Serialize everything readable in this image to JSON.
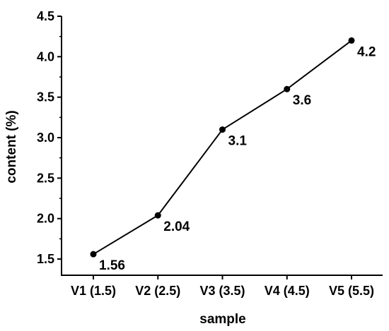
{
  "chart_data": {
    "type": "line",
    "xlabel": "sample",
    "ylabel": "content (%)",
    "categories": [
      "V1 (1.5)",
      "V2 (2.5)",
      "V3 (3.5)",
      "V4 (4.5)",
      "V5 (5.5)"
    ],
    "values": [
      1.56,
      2.04,
      3.1,
      3.6,
      4.2
    ],
    "data_labels": [
      "1.56",
      "2.04",
      "3.1",
      "3.6",
      "4.2"
    ],
    "ylim": [
      1.3,
      4.5
    ],
    "yticks": [
      1.5,
      2.0,
      2.5,
      3.0,
      3.5,
      4.0,
      4.5
    ],
    "ytick_labels": [
      "1.5",
      "2.0",
      "2.5",
      "3.0",
      "3.5",
      "4.0",
      "4.5"
    ],
    "grid": false,
    "line_color": "#000000",
    "marker_color": "#000000"
  }
}
